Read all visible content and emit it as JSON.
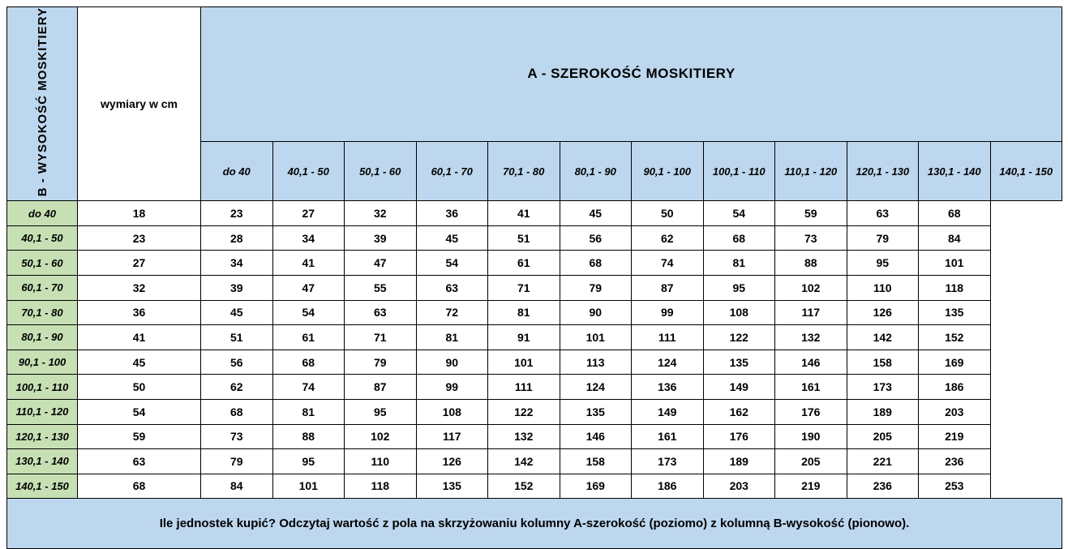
{
  "colors": {
    "header_blue": "#BDD7EE",
    "row_green": "#C6E0B4",
    "border": "#000000"
  },
  "chart_data": {
    "type": "table",
    "col_axis_title": "A - SZEROKOŚĆ MOSKITIERY",
    "row_axis_title": "B - WYSOKOŚĆ MOSKITIERY",
    "corner_label": "wymiary w cm",
    "columns": [
      "do 40",
      "40,1 - 50",
      "50,1 - 60",
      "60,1 - 70",
      "70,1 - 80",
      "80,1 - 90",
      "90,1 - 100",
      "100,1 - 110",
      "110,1 - 120",
      "120,1 - 130",
      "130,1 - 140",
      "140,1 - 150"
    ],
    "rows": [
      {
        "label": "do 40",
        "values": [
          18,
          23,
          27,
          32,
          36,
          41,
          45,
          50,
          54,
          59,
          63,
          68
        ]
      },
      {
        "label": "40,1 - 50",
        "values": [
          23,
          28,
          34,
          39,
          45,
          51,
          56,
          62,
          68,
          73,
          79,
          84
        ]
      },
      {
        "label": "50,1 - 60",
        "values": [
          27,
          34,
          41,
          47,
          54,
          61,
          68,
          74,
          81,
          88,
          95,
          101
        ]
      },
      {
        "label": "60,1 - 70",
        "values": [
          32,
          39,
          47,
          55,
          63,
          71,
          79,
          87,
          95,
          102,
          110,
          118
        ]
      },
      {
        "label": "70,1 - 80",
        "values": [
          36,
          45,
          54,
          63,
          72,
          81,
          90,
          99,
          108,
          117,
          126,
          135
        ]
      },
      {
        "label": "80,1 - 90",
        "values": [
          41,
          51,
          61,
          71,
          81,
          91,
          101,
          111,
          122,
          132,
          142,
          152
        ]
      },
      {
        "label": "90,1 - 100",
        "values": [
          45,
          56,
          68,
          79,
          90,
          101,
          113,
          124,
          135,
          146,
          158,
          169
        ]
      },
      {
        "label": "100,1 - 110",
        "values": [
          50,
          62,
          74,
          87,
          99,
          111,
          124,
          136,
          149,
          161,
          173,
          186
        ]
      },
      {
        "label": "110,1 - 120",
        "values": [
          54,
          68,
          81,
          95,
          108,
          122,
          135,
          149,
          162,
          176,
          189,
          203
        ]
      },
      {
        "label": "120,1 - 130",
        "values": [
          59,
          73,
          88,
          102,
          117,
          132,
          146,
          161,
          176,
          190,
          205,
          219
        ]
      },
      {
        "label": "130,1 - 140",
        "values": [
          63,
          79,
          95,
          110,
          126,
          142,
          158,
          173,
          189,
          205,
          221,
          236
        ]
      },
      {
        "label": "140,1 - 150",
        "values": [
          68,
          84,
          101,
          118,
          135,
          152,
          169,
          186,
          203,
          219,
          236,
          253
        ]
      }
    ],
    "note": "Ile jednostek kupić? Odczytaj wartość z pola na skrzyżowaniu kolumny A-szerokość (poziomo) z kolumną B-wysokość (pionowo)."
  }
}
